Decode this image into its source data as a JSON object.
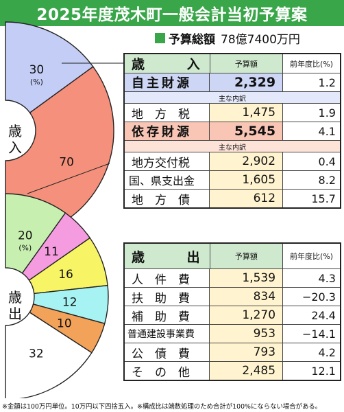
{
  "title": "2025年度茂木町一般会計当初予算案",
  "total": {
    "label": "予算総額",
    "value": "78億7400万円"
  },
  "revenue_table": {
    "header": {
      "left": "歳",
      "right": "入",
      "col_budget": "予算額",
      "col_ratio": "前年度比(%)"
    },
    "own": {
      "label": "自主財源",
      "value": "2,329",
      "ratio": "1.2"
    },
    "own_breakdown_label": "主な内訳",
    "own_items": [
      {
        "label": "地　方　税",
        "value": "1,475",
        "ratio": "1.9"
      }
    ],
    "dependent": {
      "label": "依存財源",
      "value": "5,545",
      "ratio": "4.1"
    },
    "dependent_breakdown_label": "主な内訳",
    "dependent_items": [
      {
        "label": "地方交付税",
        "value": "2,902",
        "ratio": "0.4"
      },
      {
        "label": "国、県支出金",
        "value": "1,605",
        "ratio": "8.2"
      },
      {
        "label": "地　方　債",
        "value": "612",
        "ratio": "15.7"
      }
    ]
  },
  "expenditure_table": {
    "header": {
      "left": "歳",
      "right": "出",
      "col_budget": "予算額",
      "col_ratio": "前年度比(%)"
    },
    "items": [
      {
        "label": "人　件　費",
        "value": "1,539",
        "ratio": "4.3"
      },
      {
        "label": "扶　助　費",
        "value": "834",
        "ratio": "−20.3"
      },
      {
        "label": "補　助　費",
        "value": "1,270",
        "ratio": "24.4"
      },
      {
        "label": "普通建設事業費",
        "value": "953",
        "ratio": "−14.1"
      },
      {
        "label": "公　債　費",
        "value": "793",
        "ratio": "4.2"
      },
      {
        "label": "そ　の　他",
        "value": "2,485",
        "ratio": "12.1"
      }
    ]
  },
  "footnote": "※金額は100万円単位。10万円以下四捨五入。※構成比は端数処理のため合計が100%にならない場合がある。",
  "chart_data": [
    {
      "type": "pie",
      "title": "歳入",
      "unit_label": "(%)",
      "slices": [
        {
          "value": 30,
          "label": "30",
          "color": "#c3cdf6"
        },
        {
          "value": 70,
          "label": "70",
          "color": "#f4907b"
        }
      ]
    },
    {
      "type": "pie",
      "title": "歳出",
      "unit_label": "(%)",
      "slices": [
        {
          "value": 20,
          "label": "20",
          "color": "#c7f0b0"
        },
        {
          "value": 11,
          "label": "11",
          "color": "#f59ce0"
        },
        {
          "value": 16,
          "label": "16",
          "color": "#f7f566"
        },
        {
          "value": 12,
          "label": "12",
          "color": "#a7f2f2"
        },
        {
          "value": 10,
          "label": "10",
          "color": "#f3a25a"
        },
        {
          "value": 32,
          "label": "32",
          "color": "#ffffff"
        }
      ]
    }
  ]
}
